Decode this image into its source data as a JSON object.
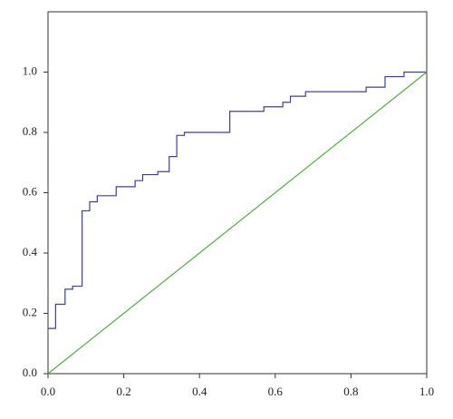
{
  "chart_data": {
    "type": "line",
    "xlim": [
      0,
      1
    ],
    "ylim": [
      0,
      1.2
    ],
    "xticks": [
      {
        "value": 0,
        "label": "0.0"
      },
      0.2,
      0.4,
      0.6,
      0.8,
      {
        "value": 1,
        "label": "1.0"
      }
    ],
    "yticks": [
      {
        "value": 0,
        "label": "0.0"
      },
      0.2,
      0.4,
      0.6,
      0.8,
      {
        "value": 1,
        "label": "1.0"
      }
    ],
    "series": [
      {
        "color": "#3b3fa8",
        "x": [
          0,
          0.02,
          0.02,
          0.045,
          0.045,
          0.065,
          0.065,
          0.09,
          0.09,
          0.11,
          0.11,
          0.13,
          0.13,
          0.18,
          0.18,
          0.23,
          0.23,
          0.25,
          0.25,
          0.29,
          0.29,
          0.32,
          0.32,
          0.34,
          0.34,
          0.36,
          0.36,
          0.48,
          0.48,
          0.57,
          0.57,
          0.62,
          0.62,
          0.64,
          0.64,
          0.68,
          0.68,
          0.84,
          0.84,
          0.89,
          0.89,
          0.94,
          0.94,
          1.0
        ],
        "values": [
          0.15,
          0.15,
          0.23,
          0.23,
          0.28,
          0.28,
          0.29,
          0.29,
          0.54,
          0.54,
          0.57,
          0.57,
          0.59,
          0.59,
          0.62,
          0.62,
          0.64,
          0.64,
          0.66,
          0.66,
          0.67,
          0.67,
          0.72,
          0.72,
          0.79,
          0.79,
          0.8,
          0.8,
          0.87,
          0.87,
          0.885,
          0.885,
          0.9,
          0.9,
          0.92,
          0.92,
          0.935,
          0.935,
          0.95,
          0.95,
          0.985,
          0.985,
          1.0,
          1.0
        ]
      },
      {
        "color": "#4caf3a",
        "x": [
          0,
          1
        ],
        "values": [
          0,
          1
        ]
      }
    ]
  }
}
